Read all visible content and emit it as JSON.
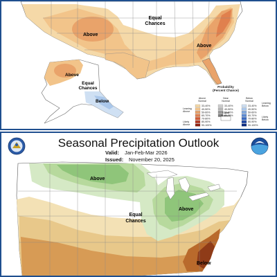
{
  "temperature_outlook": {
    "labels": {
      "above_west": "Above",
      "equal_chances_north": "Equal\nChances",
      "above_southeast": "Above",
      "above_alaska": "Above",
      "equal_chances_alaska": "Equal\nChances",
      "below_alaska": "Below"
    },
    "legend": {
      "title": "Probability\n(Percent Chance)",
      "above_header": "Above\nNormal",
      "near_header": "Near\nNormal",
      "below_header": "Below\nNormal",
      "above_bins": [
        "33-40%",
        "40-50%",
        "50-60%",
        "60-70%",
        "70-80%",
        "80-90%",
        "90-100%"
      ],
      "near_bins": [
        "33-40%",
        "40-50%",
        "50-60%",
        "60-70%"
      ],
      "below_bins": [
        "33-40%",
        "40-50%",
        "50-60%",
        "60-70%",
        "70-80%",
        "80-90%",
        "90-100%"
      ],
      "leaning_above": "Leaning\nAbove",
      "likely_above": "Likely\nAbove",
      "equal_chances": "Equal\nChances",
      "leaning_below": "Leaning\nBelow",
      "likely_below": "Likely\nBelow"
    },
    "colors": {
      "above": [
        "#f5d9a8",
        "#f2c48a",
        "#e9a36a",
        "#e0804e",
        "#d15b35",
        "#b73a23",
        "#8e1f10"
      ],
      "near": [
        "#cfcfcf",
        "#b4b4b4",
        "#9a9a9a",
        "#7e7e7e"
      ],
      "below": [
        "#cfe0f3",
        "#aac7ea",
        "#83aadf",
        "#5d8bd2",
        "#3a6ac2",
        "#1f48a6",
        "#0b2a80"
      ]
    }
  },
  "precipitation_outlook": {
    "title": "Seasonal Precipitation Outlook",
    "valid_label": "Valid:",
    "valid_value": "Jan-Feb-Mar 2026",
    "issued_label": "Issued:",
    "issued_value": "November 20, 2025",
    "labels": {
      "above_north": "Above",
      "above_ohio": "Above",
      "equal_chances": "Equal\nChances",
      "below_southeast": "Below"
    },
    "colors": {
      "above_light": "#d5e9c5",
      "above_mid": "#b7d99d",
      "above_dark": "#8fc57a",
      "below_light": "#f3e1b5",
      "below_mid": "#e8c88a",
      "below_dark": "#d79b55",
      "below_deep": "#b96a2c",
      "below_deepest": "#8f3b18"
    }
  }
}
